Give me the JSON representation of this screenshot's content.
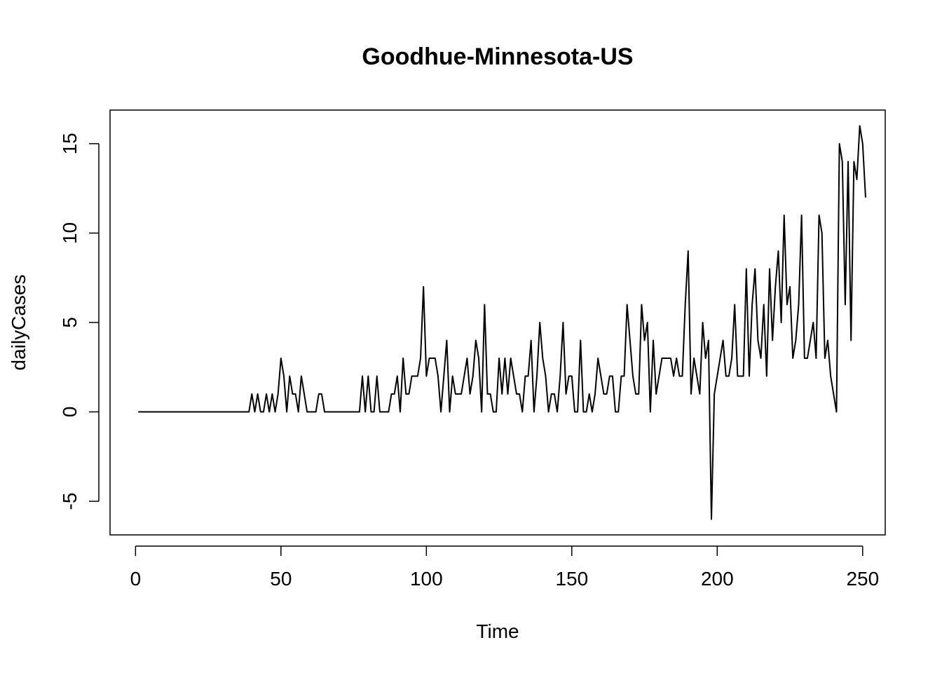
{
  "chart_data": {
    "type": "line",
    "title": "Goodhue-Minnesota-US",
    "xlabel": "Time",
    "ylabel": "dailyCases",
    "xlim": [
      -8.76,
      257.76
    ],
    "ylim": [
      -6.88,
      16.88
    ],
    "xticks": [
      0,
      50,
      100,
      150,
      200,
      250
    ],
    "yticks": [
      -5,
      0,
      5,
      10,
      15
    ],
    "grid": false,
    "series": [
      {
        "x_start": 1,
        "values": [
          0,
          0,
          0,
          0,
          0,
          0,
          0,
          0,
          0,
          0,
          0,
          0,
          0,
          0,
          0,
          0,
          0,
          0,
          0,
          0,
          0,
          0,
          0,
          0,
          0,
          0,
          0,
          0,
          0,
          0,
          0,
          0,
          0,
          0,
          0,
          0,
          0,
          0,
          0,
          1,
          0,
          1,
          0,
          0,
          1,
          0,
          1,
          0,
          1,
          3,
          2,
          0,
          2,
          1,
          1,
          0,
          2,
          1,
          0,
          0,
          0,
          0,
          1,
          1,
          0,
          0,
          0,
          0,
          0,
          0,
          0,
          0,
          0,
          0,
          0,
          0,
          0,
          2,
          0,
          2,
          0,
          0,
          2,
          0,
          0,
          0,
          0,
          1,
          1,
          2,
          0,
          3,
          1,
          1,
          2,
          2,
          2,
          3,
          7,
          2,
          3,
          3,
          3,
          2,
          0,
          2,
          4,
          0,
          2,
          1,
          1,
          1,
          2,
          3,
          1,
          2,
          4,
          3,
          0,
          6,
          1,
          1,
          0,
          0,
          3,
          1,
          3,
          1,
          3,
          2,
          1,
          1,
          0,
          2,
          2,
          4,
          0,
          2,
          5,
          3,
          2,
          0,
          1,
          1,
          0,
          2,
          5,
          1,
          2,
          2,
          0,
          0,
          4,
          0,
          0,
          1,
          0,
          1,
          3,
          2,
          1,
          1,
          2,
          2,
          0,
          0,
          2,
          2,
          6,
          4,
          2,
          1,
          1,
          6,
          4,
          5,
          0,
          4,
          1,
          2,
          3,
          3,
          3,
          3,
          2,
          3,
          2,
          2,
          6,
          9,
          1,
          3,
          2,
          1,
          5,
          3,
          4,
          -6,
          1,
          2,
          3,
          4,
          2,
          2,
          3,
          6,
          2,
          2,
          2,
          8,
          2,
          6,
          8,
          4,
          3,
          6,
          2,
          8,
          4,
          7,
          9,
          5,
          11,
          6,
          7,
          3,
          4,
          6,
          11,
          3,
          3,
          4,
          5,
          3,
          11,
          10,
          3,
          4,
          2,
          1,
          0,
          15,
          14,
          6,
          14,
          4,
          14,
          13,
          16,
          15,
          12
        ]
      }
    ]
  }
}
